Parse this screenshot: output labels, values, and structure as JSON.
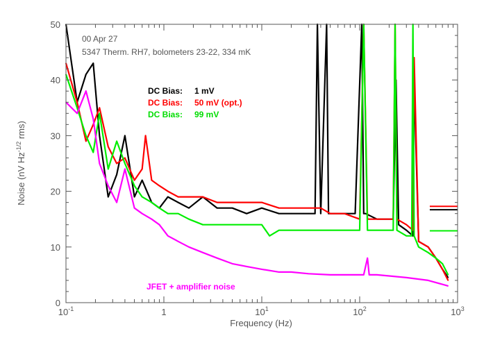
{
  "chart_data": {
    "type": "line",
    "xscale": "log",
    "xlim": [
      0.1,
      1000
    ],
    "ylim": [
      0,
      50
    ],
    "xlabel": "Frequency (Hz)",
    "ylabel": "Noise (nV Hz⁻¹ᐟ² rms)",
    "ylabel_parts": [
      "Noise (nV Hz",
      "-1/2",
      " rms)"
    ],
    "x_ticks": [
      {
        "value": 0.1,
        "base": "10",
        "exp": "-1"
      },
      {
        "value": 1,
        "label": "1"
      },
      {
        "value": 10,
        "base": "10",
        "exp": "1"
      },
      {
        "value": 100,
        "base": "10",
        "exp": "2"
      },
      {
        "value": 1000,
        "base": "10",
        "exp": "3"
      }
    ],
    "y_ticks": [
      0,
      10,
      20,
      30,
      40,
      50
    ],
    "annotations": [
      "00 Apr 27",
      "5347 Therm. RH7, bolometers 23-22, 334 mK"
    ],
    "legend": [
      {
        "label": "DC Bias:",
        "value": "1 mV",
        "color": "#000000"
      },
      {
        "label": "DC Bias:",
        "value": "50 mV (opt.)",
        "color": "#ff0000"
      },
      {
        "label": "DC Bias:",
        "value": "99 mV",
        "color": "#00ee00"
      }
    ],
    "series_note": {
      "label": "JFET + amplifier noise",
      "color": "#ff00ff"
    },
    "series": [
      {
        "name": "DC Bias: 1 mV",
        "color": "#000000",
        "x": [
          0.1,
          0.13,
          0.16,
          0.19,
          0.22,
          0.27,
          0.33,
          0.4,
          0.5,
          0.6,
          0.75,
          0.9,
          1.1,
          1.4,
          1.8,
          2.5,
          3.5,
          5,
          7,
          10,
          15,
          20,
          25,
          27,
          30,
          35,
          37,
          40,
          46,
          48,
          55,
          70,
          90,
          105,
          110,
          115,
          150,
          220,
          235,
          250,
          300,
          350,
          360,
          400,
          500,
          600,
          700,
          800
        ],
        "y": [
          50,
          36,
          41,
          43,
          30,
          19,
          23,
          30,
          19,
          22,
          18,
          17,
          19,
          18,
          17,
          19,
          17,
          17,
          16,
          17,
          16,
          16,
          16,
          16,
          16,
          16,
          50,
          16,
          50,
          16,
          16,
          16,
          16,
          50,
          16,
          16,
          15,
          15,
          40,
          14,
          13,
          12,
          40,
          11,
          10,
          8,
          6,
          4.5
        ]
      },
      {
        "name": "DC Bias: 50 mV (opt.)",
        "color": "#ff0000",
        "x": [
          0.1,
          0.13,
          0.16,
          0.19,
          0.22,
          0.27,
          0.33,
          0.4,
          0.5,
          0.6,
          0.65,
          0.75,
          0.9,
          1.1,
          1.4,
          1.8,
          2.5,
          3.5,
          5,
          7,
          10,
          15,
          20,
          30,
          40,
          50,
          70,
          100,
          110,
          120,
          150,
          220,
          230,
          240,
          300,
          350,
          360,
          400,
          500,
          600,
          700,
          800
        ],
        "y": [
          43,
          36,
          29,
          32,
          35,
          28,
          25,
          26,
          22,
          24,
          30,
          22,
          21,
          20,
          19,
          19,
          19,
          18,
          18,
          18,
          18,
          17,
          17,
          17,
          17,
          16,
          16,
          15,
          50,
          15,
          15,
          15,
          50,
          15,
          14,
          13,
          44,
          11,
          10,
          8,
          6,
          4
        ]
      },
      {
        "name": "DC Bias: 99 mV",
        "color": "#00ee00",
        "x": [
          0.1,
          0.13,
          0.16,
          0.19,
          0.22,
          0.27,
          0.33,
          0.4,
          0.5,
          0.6,
          0.75,
          0.9,
          1.1,
          1.4,
          1.8,
          2.5,
          3.5,
          5,
          7,
          10,
          12,
          15,
          20,
          30,
          50,
          70,
          100,
          110,
          120,
          150,
          220,
          230,
          240,
          300,
          340,
          350,
          360,
          400,
          500,
          600,
          700,
          800
        ],
        "y": [
          41,
          35,
          30,
          27,
          34,
          24,
          29,
          25,
          21,
          19,
          18,
          17,
          16,
          16,
          15,
          14,
          14,
          14,
          14,
          14,
          12,
          13,
          13,
          13,
          13,
          13,
          13,
          50,
          13,
          13,
          13,
          50,
          13,
          12,
          12,
          50,
          12,
          10,
          9,
          8,
          7,
          5
        ]
      },
      {
        "name": "",
        "color": "#ff00ff",
        "x": [
          0.1,
          0.13,
          0.16,
          0.19,
          0.22,
          0.27,
          0.33,
          0.4,
          0.5,
          0.6,
          0.75,
          0.9,
          1.1,
          1.4,
          1.8,
          2.5,
          3.5,
          5,
          7,
          10,
          15,
          20,
          30,
          50,
          70,
          100,
          110,
          120,
          125,
          150,
          200,
          300,
          500,
          800
        ],
        "y": [
          36,
          34,
          38,
          33,
          25,
          21,
          18,
          24,
          17,
          16,
          15,
          14,
          12,
          11,
          10,
          9,
          8,
          7,
          6.5,
          6,
          5.5,
          5.5,
          5.2,
          5,
          5,
          5,
          5,
          8,
          5,
          5,
          4.8,
          4.5,
          4,
          3
        ]
      }
    ],
    "extrapolated_levels": [
      {
        "series": "DC Bias: 1 mV",
        "y": 16.7,
        "from_x": 520,
        "to_x": 1000
      },
      {
        "series": "DC Bias: 50 mV (opt.)",
        "y": 17.3,
        "from_x": 520,
        "to_x": 1000
      },
      {
        "series": "DC Bias: 99 mV",
        "y": 12.9,
        "from_x": 520,
        "to_x": 1000
      }
    ]
  }
}
